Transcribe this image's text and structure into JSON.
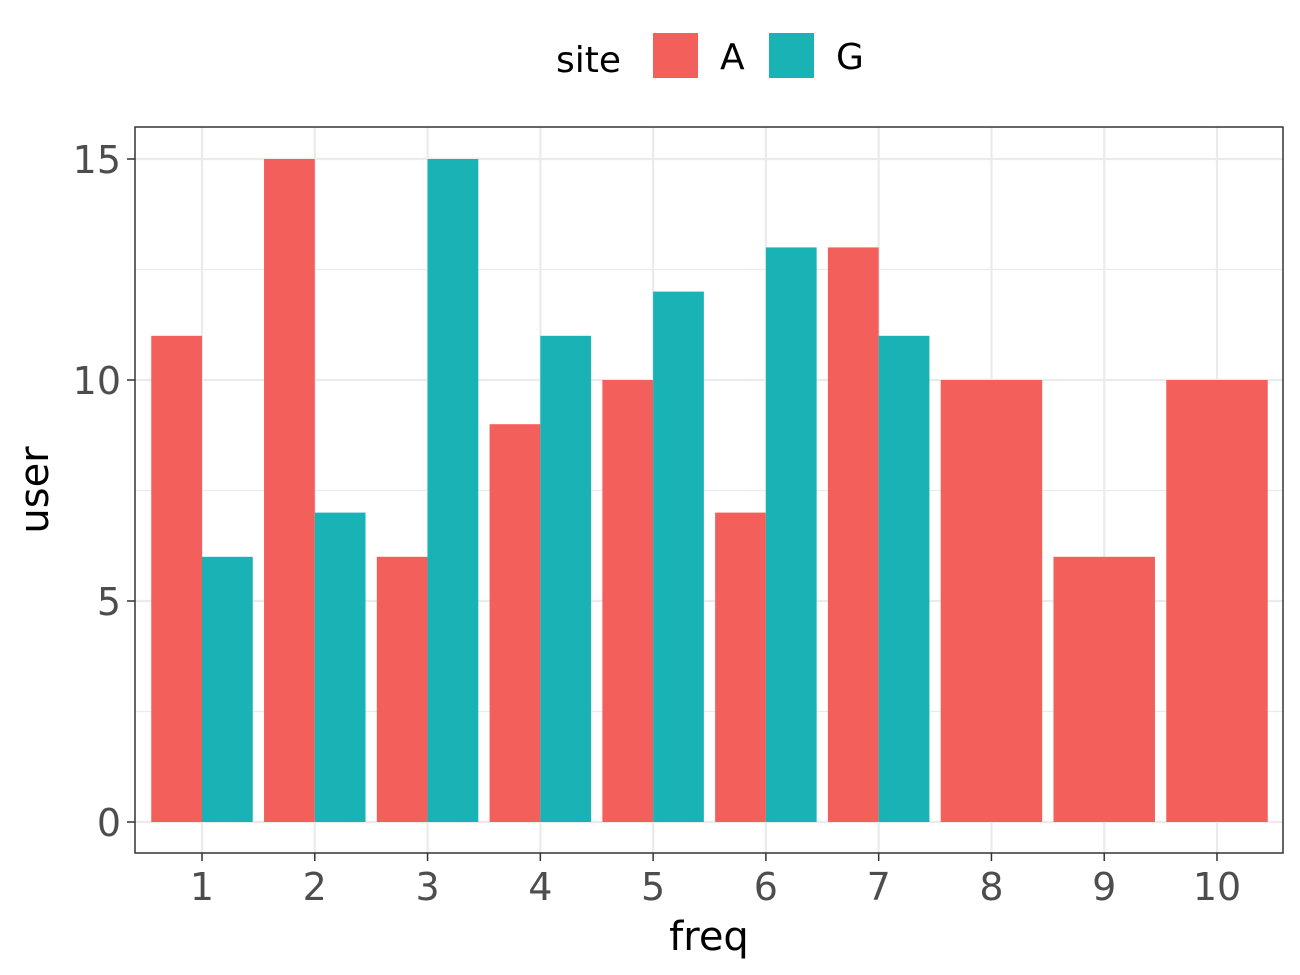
{
  "chart_data": {
    "type": "bar",
    "title": "",
    "xlabel": "freq",
    "ylabel": "user",
    "categories": [
      "1",
      "2",
      "3",
      "4",
      "5",
      "6",
      "7",
      "8",
      "9",
      "10"
    ],
    "series": [
      {
        "name": "A",
        "color": "#F3605B",
        "values": [
          11,
          15,
          6,
          9,
          10,
          7,
          13,
          10,
          6,
          10
        ]
      },
      {
        "name": "G",
        "color": "#19B3B6",
        "values": [
          6,
          7,
          15,
          11,
          12,
          13,
          11,
          null,
          null,
          null
        ]
      }
    ],
    "yticks": [
      0,
      5,
      10,
      15
    ],
    "ylim": [
      -0.7,
      16.2
    ],
    "grid": true,
    "legend": {
      "title": "site",
      "position": "top",
      "entries": [
        "A",
        "G"
      ]
    },
    "position": "dodge"
  }
}
